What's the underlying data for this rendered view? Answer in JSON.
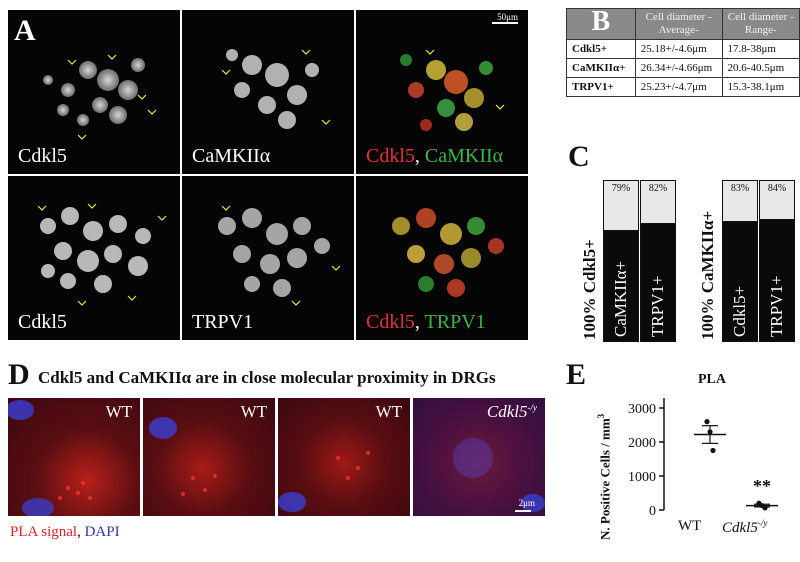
{
  "panelA": {
    "letter": "A",
    "scale": "50μm",
    "top_row": {
      "left": "Cdkl5",
      "middle": "CaMKIIα",
      "merge_red": "Cdkl5",
      "merge_sep": ", ",
      "merge_green": "CaMKIIα"
    },
    "bottom_row": {
      "left": "Cdkl5",
      "middle": "TRPV1",
      "merge_red": "Cdkl5",
      "merge_sep": ", ",
      "merge_green": "TRPV1"
    }
  },
  "panelB": {
    "letter": "B",
    "headers": [
      "Cell diameter -Average-",
      "Cell diameter -Range-"
    ],
    "rows": [
      {
        "name": "Cdkl5+",
        "avg": "25.18+/-4.6μm",
        "range": "17.8-38μm"
      },
      {
        "name": "CaMKIIα+",
        "avg": "26.34+/-4.66μm",
        "range": "20.6-40.5μm"
      },
      {
        "name": "TRPV1+",
        "avg": "25.23+/-4.7μm",
        "range": "15.3-38.1μm"
      }
    ]
  },
  "panelC": {
    "letter": "C",
    "groups": [
      {
        "ylabel": "100% Cdkl5+",
        "bars": [
          {
            "label": "CaMKIIα+",
            "percent": "79%",
            "value": 79
          },
          {
            "label": "TRPV1+",
            "percent": "82%",
            "value": 82
          }
        ]
      },
      {
        "ylabel": "100% CaMKIIα+",
        "bars": [
          {
            "label": "Cdkl5+",
            "percent": "83%",
            "value": 83
          },
          {
            "label": "TRPV1+",
            "percent": "84%",
            "value": 84
          }
        ]
      }
    ]
  },
  "panelD": {
    "letter": "D",
    "title": "Cdkl5 and CaMKIIα are in close molecular proximity in DRGs",
    "tiles": [
      {
        "label": "WT"
      },
      {
        "label": "WT"
      },
      {
        "label": "WT"
      },
      {
        "label": "Cdkl5",
        "sup": "-/y"
      }
    ],
    "scale": "2μm",
    "legend_red": "PLA signal",
    "legend_sep": ", ",
    "legend_blue": "DAPI"
  },
  "panelE": {
    "letter": "E",
    "chart_data": {
      "type": "scatter",
      "title": "PLA",
      "ylabel": "N. Positive Cells / mm",
      "ylabel_sup": "3",
      "ylim": [
        0,
        3000
      ],
      "yticks": [
        "0",
        "1000",
        "2000",
        "3000"
      ],
      "categories": [
        "WT",
        "Cdkl5"
      ],
      "category_sup": [
        "",
        "-/y"
      ],
      "points": [
        [
          2600,
          2300,
          1750
        ],
        [
          200,
          130,
          60
        ]
      ],
      "means": [
        2220,
        130
      ],
      "errors": [
        260,
        40
      ],
      "significance": "**"
    }
  }
}
